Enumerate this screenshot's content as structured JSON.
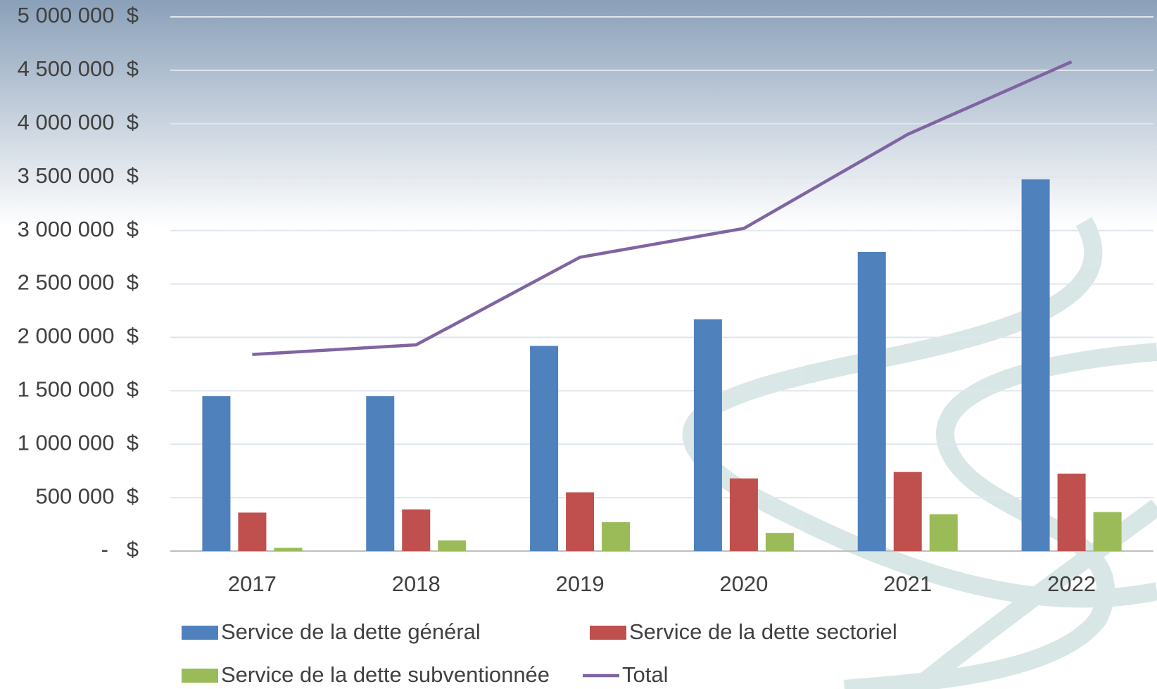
{
  "chart_data": {
    "type": "bar",
    "categories": [
      "2017",
      "2018",
      "2019",
      "2020",
      "2021",
      "2022"
    ],
    "series": [
      {
        "name": "Service de la dette général",
        "color": "#4f81bd",
        "values": [
          1450000,
          1450000,
          1920000,
          2170000,
          2800000,
          3480000
        ]
      },
      {
        "name": "Service de la dette sectoriel",
        "color": "#c0504d",
        "values": [
          360000,
          390000,
          550000,
          680000,
          740000,
          725000
        ]
      },
      {
        "name": "Service de la dette subventionnée",
        "color": "#9bbb59",
        "values": [
          30000,
          100000,
          270000,
          170000,
          345000,
          365000
        ]
      },
      {
        "name": "Total",
        "color": "#8064a2",
        "type": "line",
        "values": [
          1840000,
          1930000,
          2750000,
          3020000,
          3900000,
          4580000
        ]
      }
    ],
    "ylim": [
      0,
      5000000
    ],
    "yticks": [
      {
        "value": 0,
        "label": "-   $"
      },
      {
        "value": 500000,
        "label": "500 000  $"
      },
      {
        "value": 1000000,
        "label": "1 000 000  $"
      },
      {
        "value": 1500000,
        "label": "1 500 000  $"
      },
      {
        "value": 2000000,
        "label": "2 000 000  $"
      },
      {
        "value": 2500000,
        "label": "2 500 000  $"
      },
      {
        "value": 3000000,
        "label": "3 000 000  $"
      },
      {
        "value": 3500000,
        "label": "3 500 000  $"
      },
      {
        "value": 4000000,
        "label": "4 000 000  $"
      },
      {
        "value": 4500000,
        "label": "4 500 000  $"
      },
      {
        "value": 5000000,
        "label": "5 000 000  $"
      }
    ],
    "grid": true
  }
}
